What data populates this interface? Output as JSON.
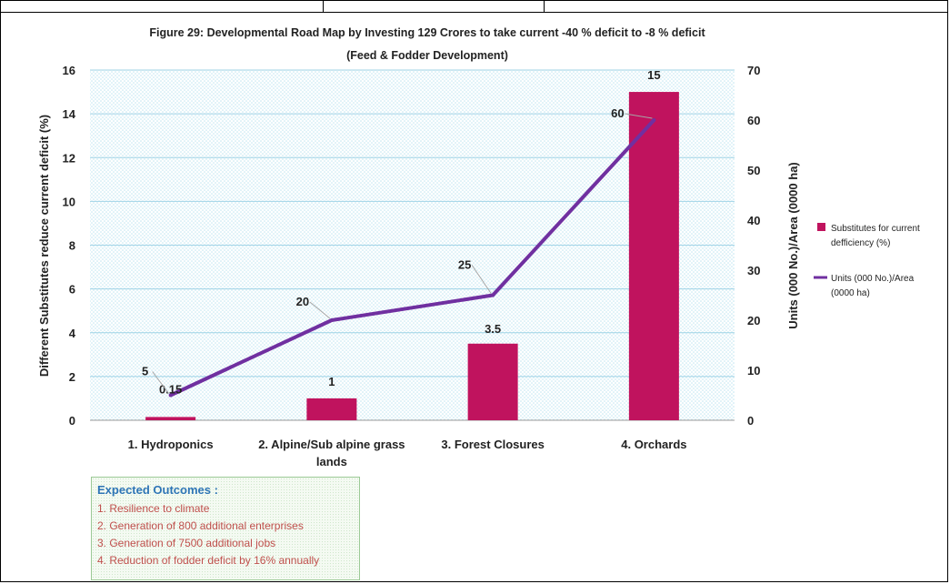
{
  "chart_data": {
    "type": "bar+line",
    "title": "Figure 29: Developmental Road Map by Investing 129 Crores to take current -40 % deficit to -8 % deficit",
    "subtitle": "(Feed & Fodder Development)",
    "categories": [
      "1. Hydroponics",
      "2. Alpine/Sub alpine grass lands",
      "3. Forest Closures",
      "4. Orchards"
    ],
    "series": [
      {
        "name": "Substitutes for current defficiency (%)",
        "type": "bar",
        "axis": "left",
        "values": [
          0.15,
          1,
          3.5,
          15
        ],
        "labels": [
          "0.15",
          "1",
          "3.5",
          "15"
        ],
        "color": "#c0135e"
      },
      {
        "name": "Units (000 No.)/Area (0000 ha)",
        "type": "line",
        "axis": "right",
        "values": [
          5,
          20,
          25,
          60
        ],
        "labels": [
          "5",
          "20",
          "25",
          "60"
        ],
        "color": "#7030a0"
      }
    ],
    "ylabel": "Different Substitutes reduce current deficit (%)",
    "y2label": "Units (000 No.)/Area (0000 ha)",
    "ylim": [
      0,
      16
    ],
    "y2lim": [
      0,
      70
    ],
    "yticks": [
      "0",
      "2",
      "4",
      "6",
      "8",
      "10",
      "12",
      "14",
      "16"
    ],
    "y2ticks": [
      "0",
      "10",
      "20",
      "30",
      "40",
      "50",
      "60",
      "70"
    ],
    "grid": true,
    "legend_position": "right"
  },
  "legend": {
    "bar_lines": [
      "Substitutes for current",
      "defficiency (%)"
    ],
    "line_lines": [
      "Units (000 No.)/Area",
      "(0000 ha)"
    ]
  },
  "outcomes": {
    "heading": "Expected Outcomes :",
    "items": [
      "1. Resilience to climate",
      "2. Generation of 800 additional enterprises",
      "3. Generation of 7500 additional jobs",
      "4. Reduction of fodder deficit by 16% annually"
    ]
  }
}
